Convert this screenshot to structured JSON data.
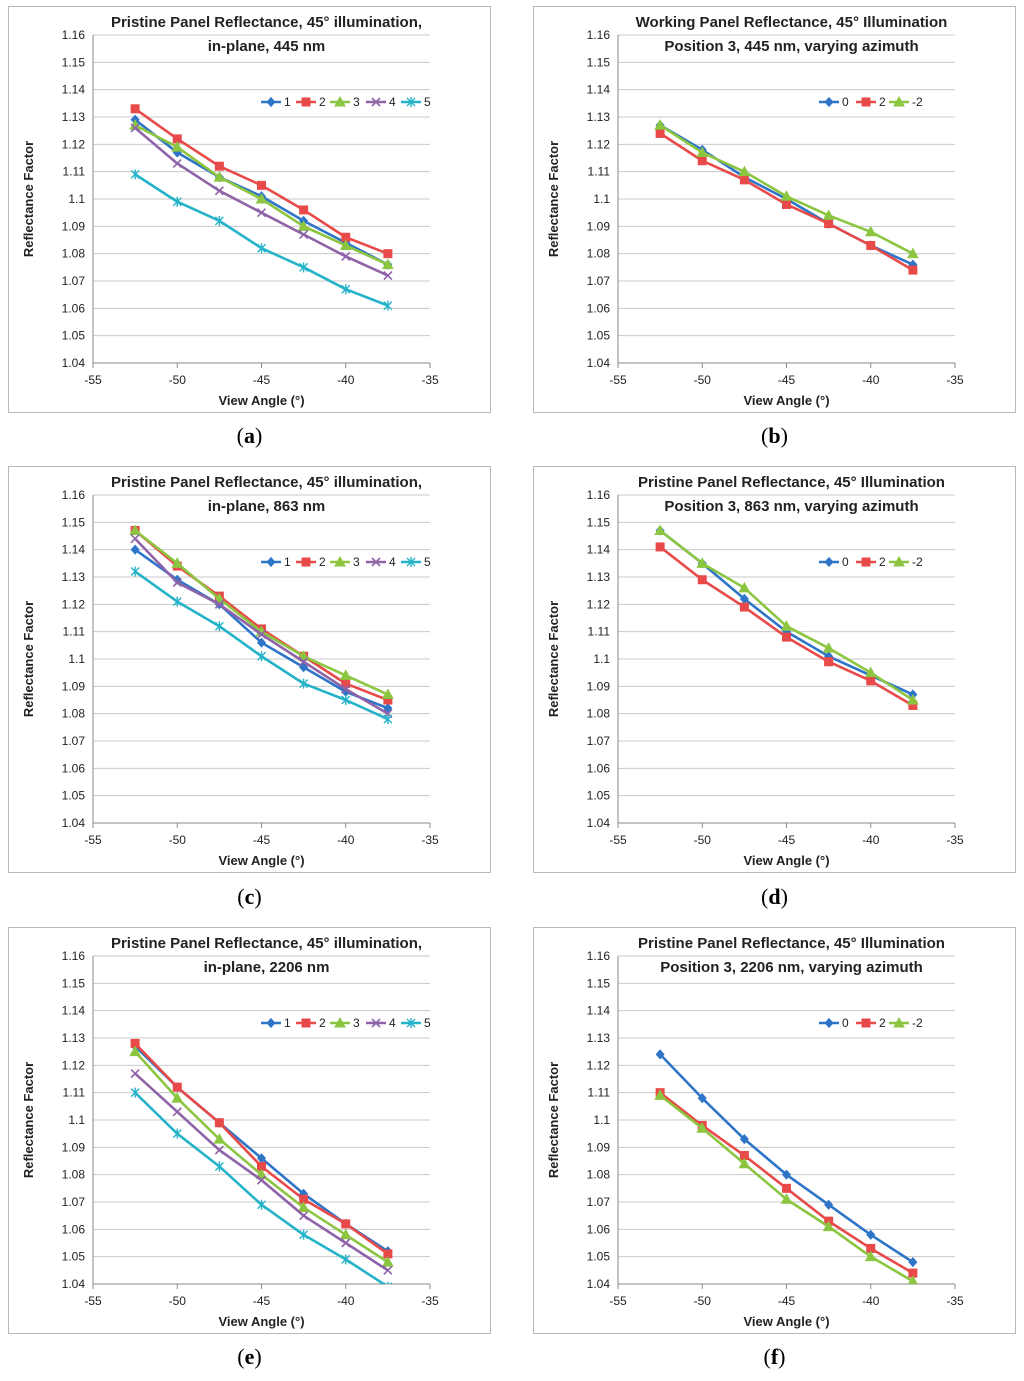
{
  "chart_data": [
    {
      "id": "a",
      "type": "line",
      "title_lines": [
        "Pristine Panel Reflectance, 45° illumination,",
        "in-plane, 445 nm"
      ],
      "xlabel": "View Angle (°)",
      "ylabel": "Reflectance Factor",
      "xlim": [
        -55,
        -35
      ],
      "ylim": [
        1.04,
        1.16
      ],
      "xticks": [
        "-55",
        "-50",
        "-45",
        "-40",
        "-35"
      ],
      "yticks": [
        "1.04",
        "1.05",
        "1.06",
        "1.07",
        "1.08",
        "1.09",
        "1.1",
        "1.11",
        "1.12",
        "1.13",
        "1.14",
        "1.15",
        "1.16"
      ],
      "x": [
        -52.5,
        -50,
        -47.5,
        -45,
        -42.5,
        -40,
        -37.5
      ],
      "series": [
        {
          "name": "1",
          "marker": "diamond",
          "color": "#2e75c8",
          "values": [
            1.129,
            1.117,
            1.108,
            1.101,
            1.092,
            1.084,
            1.076
          ]
        },
        {
          "name": "2",
          "marker": "square",
          "color": "#e84a4a",
          "values": [
            1.133,
            1.122,
            1.112,
            1.105,
            1.096,
            1.086,
            1.08
          ]
        },
        {
          "name": "3",
          "marker": "triangle",
          "color": "#8cc641",
          "values": [
            1.127,
            1.119,
            1.108,
            1.1,
            1.09,
            1.083,
            1.076
          ]
        },
        {
          "name": "4",
          "marker": "x",
          "color": "#8e63a8",
          "values": [
            1.126,
            1.113,
            1.103,
            1.095,
            1.087,
            1.079,
            1.072
          ]
        },
        {
          "name": "5",
          "marker": "star",
          "color": "#25b3c9",
          "values": [
            1.109,
            1.099,
            1.092,
            1.082,
            1.075,
            1.067,
            1.061
          ]
        }
      ],
      "legend": "top-right",
      "caption": "a"
    },
    {
      "id": "b",
      "type": "line",
      "title_lines": [
        "Working Panel Reflectance, 45° Illumination",
        "Position 3, 445 nm, varying azimuth"
      ],
      "xlabel": "View Angle (°)",
      "ylabel": "Reflectance Factor",
      "xlim": [
        -55,
        -35
      ],
      "ylim": [
        1.04,
        1.16
      ],
      "xticks": [
        "-55",
        "-50",
        "-45",
        "-40",
        "-35"
      ],
      "yticks": [
        "1.04",
        "1.05",
        "1.06",
        "1.07",
        "1.08",
        "1.09",
        "1.1",
        "1.11",
        "1.12",
        "1.13",
        "1.14",
        "1.15",
        "1.16"
      ],
      "x": [
        -52.5,
        -50,
        -47.5,
        -45,
        -42.5,
        -40,
        -37.5
      ],
      "series": [
        {
          "name": "0",
          "marker": "diamond",
          "color": "#2e75c8",
          "values": [
            1.127,
            1.118,
            1.108,
            1.1,
            1.091,
            1.083,
            1.076
          ]
        },
        {
          "name": "2",
          "marker": "square",
          "color": "#e84a4a",
          "values": [
            1.124,
            1.114,
            1.107,
            1.098,
            1.091,
            1.083,
            1.074
          ]
        },
        {
          "name": "-2",
          "marker": "triangle",
          "color": "#8cc641",
          "values": [
            1.127,
            1.117,
            1.11,
            1.101,
            1.094,
            1.088,
            1.08
          ]
        }
      ],
      "legend": "top-right",
      "caption": "b"
    },
    {
      "id": "c",
      "type": "line",
      "title_lines": [
        "Pristine Panel Reflectance, 45° illumination,",
        "in-plane, 863 nm"
      ],
      "xlabel": "View Angle (°)",
      "ylabel": "Reflectance Factor",
      "xlim": [
        -55,
        -35
      ],
      "ylim": [
        1.04,
        1.16
      ],
      "xticks": [
        "-55",
        "-50",
        "-45",
        "-40",
        "-35"
      ],
      "yticks": [
        "1.04",
        "1.05",
        "1.06",
        "1.07",
        "1.08",
        "1.09",
        "1.1",
        "1.11",
        "1.12",
        "1.13",
        "1.14",
        "1.15",
        "1.16"
      ],
      "x": [
        -52.5,
        -50,
        -47.5,
        -45,
        -42.5,
        -40,
        -37.5
      ],
      "series": [
        {
          "name": "1",
          "marker": "diamond",
          "color": "#2e75c8",
          "values": [
            1.14,
            1.129,
            1.12,
            1.106,
            1.097,
            1.088,
            1.082
          ]
        },
        {
          "name": "2",
          "marker": "square",
          "color": "#e84a4a",
          "values": [
            1.147,
            1.134,
            1.123,
            1.111,
            1.101,
            1.091,
            1.085
          ]
        },
        {
          "name": "3",
          "marker": "triangle",
          "color": "#8cc641",
          "values": [
            1.147,
            1.135,
            1.122,
            1.11,
            1.101,
            1.094,
            1.087
          ]
        },
        {
          "name": "4",
          "marker": "x",
          "color": "#8e63a8",
          "values": [
            1.144,
            1.128,
            1.12,
            1.109,
            1.099,
            1.089,
            1.08
          ]
        },
        {
          "name": "5",
          "marker": "star",
          "color": "#25b3c9",
          "values": [
            1.132,
            1.121,
            1.112,
            1.101,
            1.091,
            1.085,
            1.078
          ]
        }
      ],
      "legend": "top-right",
      "caption": "c"
    },
    {
      "id": "d",
      "type": "line",
      "title_lines": [
        "Pristine Panel Reflectance, 45° Illumination",
        "Position 3, 863 nm, varying azimuth"
      ],
      "xlabel": "View Angle (°)",
      "ylabel": "Reflectance Factor",
      "xlim": [
        -55,
        -35
      ],
      "ylim": [
        1.04,
        1.16
      ],
      "xticks": [
        "-55",
        "-50",
        "-45",
        "-40",
        "-35"
      ],
      "yticks": [
        "1.04",
        "1.05",
        "1.06",
        "1.07",
        "1.08",
        "1.09",
        "1.1",
        "1.11",
        "1.12",
        "1.13",
        "1.14",
        "1.15",
        "1.16"
      ],
      "x": [
        -52.5,
        -50,
        -47.5,
        -45,
        -42.5,
        -40,
        -37.5
      ],
      "series": [
        {
          "name": "0",
          "marker": "diamond",
          "color": "#2e75c8",
          "values": [
            1.147,
            1.135,
            1.122,
            1.11,
            1.101,
            1.094,
            1.087
          ]
        },
        {
          "name": "2",
          "marker": "square",
          "color": "#e84a4a",
          "values": [
            1.141,
            1.129,
            1.119,
            1.108,
            1.099,
            1.092,
            1.083
          ]
        },
        {
          "name": "-2",
          "marker": "triangle",
          "color": "#8cc641",
          "values": [
            1.147,
            1.135,
            1.126,
            1.112,
            1.104,
            1.095,
            1.085
          ]
        }
      ],
      "legend": "top-right",
      "caption": "d"
    },
    {
      "id": "e",
      "type": "line",
      "title_lines": [
        "Pristine Panel Reflectance, 45° illumination,",
        "in-plane, 2206 nm"
      ],
      "xlabel": "View Angle (°)",
      "ylabel": "Reflectance Factor",
      "xlim": [
        -55,
        -35
      ],
      "ylim": [
        1.04,
        1.16
      ],
      "xticks": [
        "-55",
        "-50",
        "-45",
        "-40",
        "-35"
      ],
      "yticks": [
        "1.04",
        "1.05",
        "1.06",
        "1.07",
        "1.08",
        "1.09",
        "1.1",
        "1.11",
        "1.12",
        "1.13",
        "1.14",
        "1.15",
        "1.16"
      ],
      "x": [
        -52.5,
        -50,
        -47.5,
        -45,
        -42.5,
        -40,
        -37.5
      ],
      "series": [
        {
          "name": "1",
          "marker": "diamond",
          "color": "#2e75c8",
          "values": [
            1.127,
            1.112,
            1.099,
            1.086,
            1.073,
            1.062,
            1.052
          ]
        },
        {
          "name": "2",
          "marker": "square",
          "color": "#e84a4a",
          "values": [
            1.128,
            1.112,
            1.099,
            1.083,
            1.071,
            1.062,
            1.051
          ]
        },
        {
          "name": "3",
          "marker": "triangle",
          "color": "#8cc641",
          "values": [
            1.125,
            1.108,
            1.093,
            1.08,
            1.068,
            1.058,
            1.048
          ]
        },
        {
          "name": "4",
          "marker": "x",
          "color": "#8e63a8",
          "values": [
            1.117,
            1.103,
            1.089,
            1.078,
            1.065,
            1.055,
            1.045
          ]
        },
        {
          "name": "5",
          "marker": "star",
          "color": "#25b3c9",
          "values": [
            1.11,
            1.095,
            1.083,
            1.069,
            1.058,
            1.049,
            1.039
          ]
        }
      ],
      "legend": "top-right",
      "caption": "e"
    },
    {
      "id": "f",
      "type": "line",
      "title_lines": [
        "Pristine Panel Reflectance, 45° Illumination",
        "Position 3, 2206 nm, varying azimuth"
      ],
      "xlabel": "View Angle (°)",
      "ylabel": "Reflectance Factor",
      "xlim": [
        -55,
        -35
      ],
      "ylim": [
        1.04,
        1.16
      ],
      "xticks": [
        "-55",
        "-50",
        "-45",
        "-40",
        "-35"
      ],
      "yticks": [
        "1.04",
        "1.05",
        "1.06",
        "1.07",
        "1.08",
        "1.09",
        "1.1",
        "1.11",
        "1.12",
        "1.13",
        "1.14",
        "1.15",
        "1.16"
      ],
      "x": [
        -52.5,
        -50,
        -47.5,
        -45,
        -42.5,
        -40,
        -37.5
      ],
      "series": [
        {
          "name": "0",
          "marker": "diamond",
          "color": "#2e75c8",
          "values": [
            1.124,
            1.108,
            1.093,
            1.08,
            1.069,
            1.058,
            1.048
          ]
        },
        {
          "name": "2",
          "marker": "square",
          "color": "#e84a4a",
          "values": [
            1.11,
            1.098,
            1.087,
            1.075,
            1.063,
            1.053,
            1.044
          ]
        },
        {
          "name": "-2",
          "marker": "triangle",
          "color": "#8cc641",
          "values": [
            1.109,
            1.097,
            1.084,
            1.071,
            1.061,
            1.05,
            1.041
          ]
        }
      ],
      "legend": "top-right",
      "caption": "f"
    }
  ]
}
